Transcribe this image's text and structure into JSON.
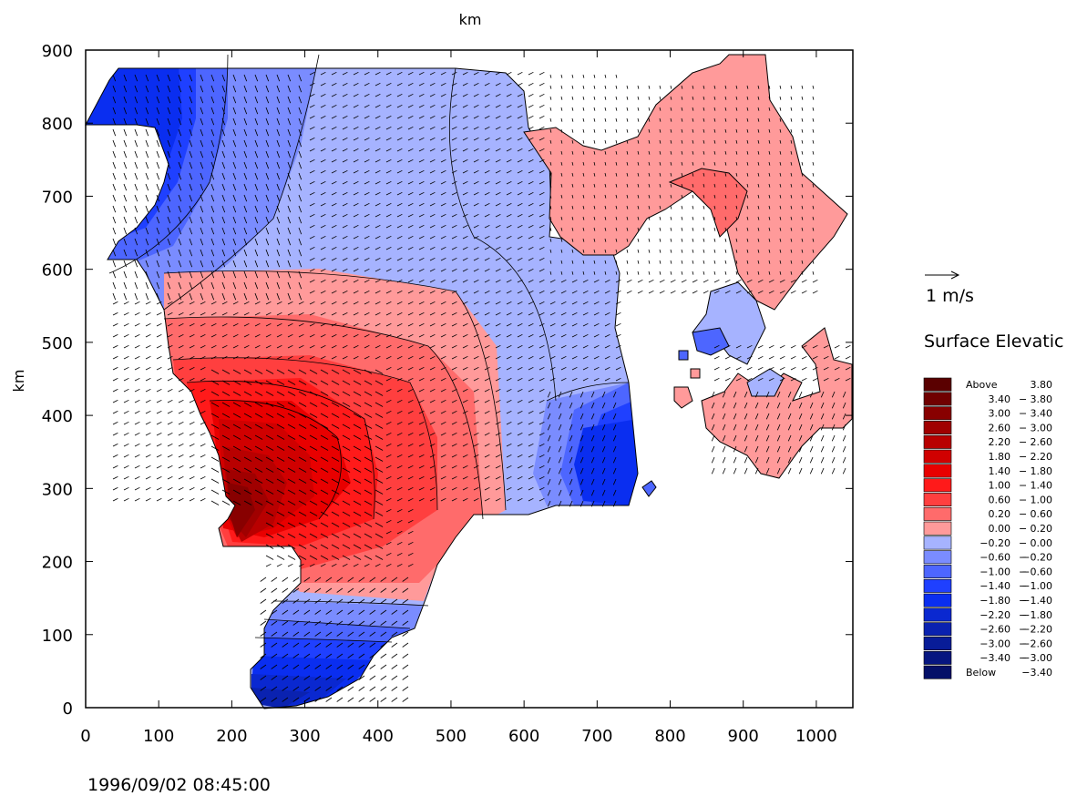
{
  "chart_data": {
    "type": "heatmap",
    "x_axis": {
      "label": "km",
      "ticks": [
        0,
        100,
        200,
        300,
        400,
        500,
        600,
        700,
        800,
        900,
        1000
      ],
      "range": [
        0,
        1050
      ]
    },
    "y_axis": {
      "label": "km",
      "ticks": [
        0,
        100,
        200,
        300,
        400,
        500,
        600,
        700,
        800,
        900
      ],
      "range": [
        0,
        900
      ]
    },
    "vector_scale": {
      "label": "1 m/s",
      "value": 1
    },
    "legend_title": "Surface Elevatic",
    "legend_position": "right",
    "timestamp": "1996/09/02 08:45:00",
    "levels": [
      {
        "label": "Above",
        "range": "3.80",
        "color": "#5a0000"
      },
      {
        "label": "3.40",
        "range": "3.80",
        "color": "#700000"
      },
      {
        "label": "3.00",
        "range": "3.40",
        "color": "#880000"
      },
      {
        "label": "2.60",
        "range": "3.00",
        "color": "#a00000"
      },
      {
        "label": "2.20",
        "range": "2.60",
        "color": "#b80000"
      },
      {
        "label": "1.80",
        "range": "2.20",
        "color": "#d00000"
      },
      {
        "label": "1.40",
        "range": "1.80",
        "color": "#e80000"
      },
      {
        "label": "1.00",
        "range": "1.40",
        "color": "#ff1a1a"
      },
      {
        "label": "0.60",
        "range": "1.00",
        "color": "#ff3f3f"
      },
      {
        "label": "0.20",
        "range": "0.60",
        "color": "#ff6b6b"
      },
      {
        "label": "0.00",
        "range": "0.20",
        "color": "#ff9a9a"
      },
      {
        "label": "−0.20",
        "range": "0.00",
        "color": "#a6b3ff"
      },
      {
        "label": "−0.60",
        "range": "−0.20",
        "color": "#7a8cff"
      },
      {
        "label": "−1.00",
        "range": "−0.60",
        "color": "#4d66ff"
      },
      {
        "label": "−1.40",
        "range": "−1.00",
        "color": "#1f40ff"
      },
      {
        "label": "−1.80",
        "range": "−1.40",
        "color": "#0a2ef0"
      },
      {
        "label": "−2.20",
        "range": "−1.80",
        "color": "#0a28d0"
      },
      {
        "label": "−2.60",
        "range": "−2.20",
        "color": "#0a22b0"
      },
      {
        "label": "−3.00",
        "range": "−2.60",
        "color": "#081c98"
      },
      {
        "label": "−3.40",
        "range": "−3.00",
        "color": "#061680"
      },
      {
        "label": "Below",
        "range": "−3.40",
        "color": "#041068"
      }
    ]
  }
}
